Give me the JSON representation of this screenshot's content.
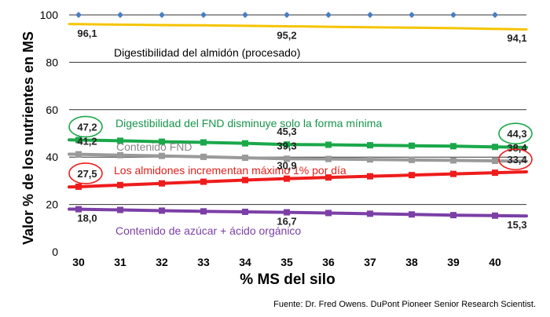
{
  "chart_data": {
    "type": "line",
    "xlabel": "% MS del silo",
    "ylabel": "Valor % de los nutrientes en MS",
    "ylim": [
      0,
      100
    ],
    "yticks": [
      "0",
      "20",
      "40",
      "60",
      "80",
      "100"
    ],
    "x": [
      "30",
      "31",
      "32",
      "33",
      "34",
      "35",
      "36",
      "37",
      "38",
      "39",
      "40"
    ],
    "grid": "horizontal",
    "source": "Fuente: Dr. Fred Owens. DuPont Pioneer Senior Research Scientist.",
    "series": [
      {
        "name": "",
        "color": "#4a7fbf",
        "marker": "diamond",
        "values": [
          100,
          100,
          100,
          100,
          100,
          100,
          100,
          100,
          100,
          100,
          100
        ]
      },
      {
        "name": "Digestibilidad del almidón (procesado)",
        "color": "#f5c400",
        "marker": "none",
        "values": [
          96.1,
          95.9,
          95.7,
          95.6,
          95.4,
          95.2,
          95.0,
          94.8,
          94.6,
          94.4,
          94.1
        ],
        "point_labels": [
          {
            "index": 0,
            "text": "96,1"
          },
          {
            "index": 5,
            "text": "95,2"
          },
          {
            "index": 10,
            "text": "94,1"
          }
        ]
      },
      {
        "name": "Digestibilidad del FND disminuye solo la forma mínima",
        "color": "#1aa84a",
        "marker": "square",
        "values": [
          47.2,
          46.9,
          46.5,
          46.2,
          45.8,
          45.3,
          45.2,
          45.0,
          44.8,
          44.6,
          44.3
        ],
        "point_labels": [
          {
            "index": 0,
            "text": "47,2",
            "circled": true
          },
          {
            "index": 5,
            "text": "45,3"
          },
          {
            "index": 10,
            "text": "44,3",
            "circled": true
          }
        ]
      },
      {
        "name": "Contenido FND",
        "color": "#9a9a9a",
        "marker": "square",
        "values": [
          41.2,
          40.8,
          40.5,
          40.1,
          39.7,
          39.3,
          39.2,
          39.0,
          38.8,
          38.6,
          38.4
        ],
        "point_labels": [
          {
            "index": 0,
            "text": "41,2"
          },
          {
            "index": 5,
            "text": "39,3"
          },
          {
            "index": 10,
            "text": "38,4"
          }
        ]
      },
      {
        "name": "Los almidones incrementan máximo 1% por día",
        "color": "#ee1c1c",
        "marker": "square",
        "values": [
          27.5,
          28.2,
          28.9,
          29.6,
          30.3,
          30.9,
          31.4,
          31.9,
          32.4,
          32.9,
          33.4
        ],
        "point_labels": [
          {
            "index": 0,
            "text": "27,5",
            "circled": true
          },
          {
            "index": 5,
            "text": "30,9"
          },
          {
            "index": 10,
            "text": "33,4",
            "circled": true
          }
        ]
      },
      {
        "name": "Contenido de azúcar + ácido orgánico",
        "color": "#7b3fa6",
        "marker": "square",
        "values": [
          18.0,
          17.7,
          17.4,
          17.1,
          16.9,
          16.7,
          16.4,
          16.1,
          15.8,
          15.5,
          15.3
        ],
        "point_labels": [
          {
            "index": 0,
            "text": "18,0"
          },
          {
            "index": 5,
            "text": "16,7"
          },
          {
            "index": 10,
            "text": "15,3"
          }
        ]
      }
    ]
  }
}
